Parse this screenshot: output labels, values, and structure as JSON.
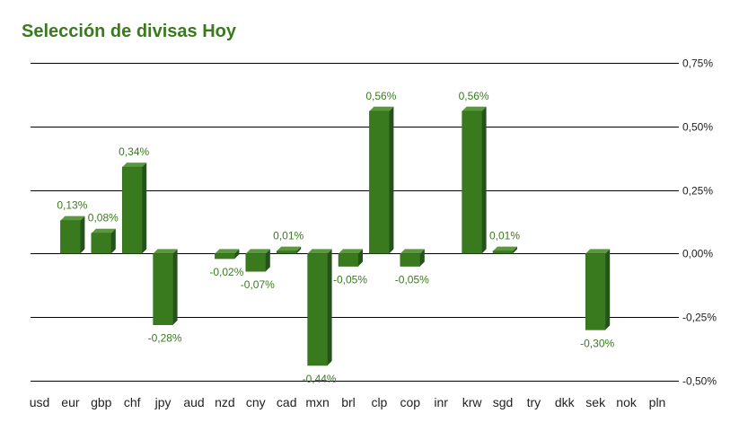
{
  "title": "Selección de divisas Hoy",
  "chart_data": {
    "type": "bar",
    "title": "Selección de divisas Hoy",
    "categories": [
      "usd",
      "eur",
      "gbp",
      "chf",
      "jpy",
      "aud",
      "nzd",
      "cny",
      "cad",
      "mxn",
      "brl",
      "clp",
      "cop",
      "inr",
      "krw",
      "sgd",
      "try",
      "dkk",
      "sek",
      "nok",
      "pln"
    ],
    "values": [
      null,
      0.13,
      0.08,
      0.34,
      -0.28,
      null,
      -0.02,
      -0.07,
      0.01,
      -0.44,
      -0.05,
      0.56,
      -0.05,
      null,
      0.56,
      0.01,
      null,
      null,
      -0.3,
      null,
      null
    ],
    "value_labels": [
      "",
      "0,13%",
      "0,08%",
      "0,34%",
      "-0,28%",
      "",
      "-0,02%",
      "-0,07%",
      "0,01%",
      "-0,44%",
      "-0,05%",
      "0,56%",
      "-0,05%",
      "",
      "0,56%",
      "0,01%",
      "",
      "",
      "-0,30%",
      "",
      ""
    ],
    "y_ticks": [
      0.75,
      0.5,
      0.25,
      0.0,
      -0.25,
      -0.5
    ],
    "y_tick_labels": [
      "0,75%",
      "0,50%",
      "0,25%",
      "0,00%",
      "-0,25%",
      "-0,50%"
    ],
    "ylim": [
      -0.5,
      0.75
    ],
    "ylabel": "",
    "xlabel": "",
    "y_axis_side": "right",
    "grid": true,
    "bar_color": "#3a7a1f",
    "label_color": "#3a7a1f"
  }
}
